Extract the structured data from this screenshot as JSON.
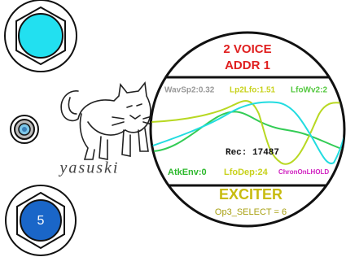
{
  "knob_bottom": {
    "label": "5"
  },
  "logo": {
    "text": "yasuski"
  },
  "display": {
    "voice": "2 VOICE",
    "address": "ADDR 1",
    "params_top": [
      "WavSp2:0.32",
      "Lp2Lfo:1.51",
      "LfoWv2:2"
    ],
    "readout": "Rec: 17487",
    "params_bottom": [
      "AtkEnv:0",
      "LfoDep:24",
      "ChronOnLHOLD"
    ],
    "mode": "EXCITER",
    "selection": "Op3_SELECT = 6"
  }
}
